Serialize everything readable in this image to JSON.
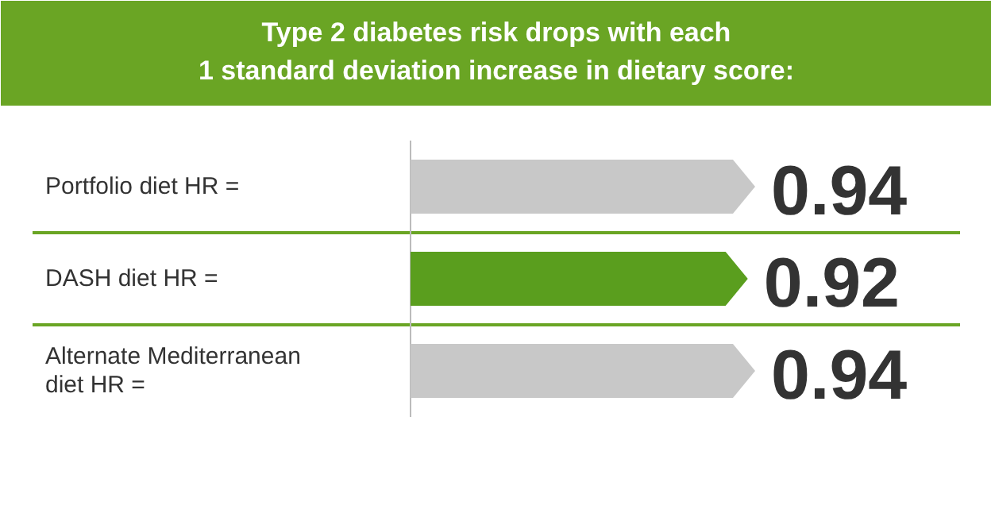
{
  "chart_data": {
    "type": "bar",
    "orientation": "horizontal",
    "title": "Type 2 diabetes risk drops with each\n1 standard deviation increase in dietary score:",
    "categories": [
      "Portfolio diet HR =",
      "DASH diet HR =",
      "Alternate Mediterranean diet HR ="
    ],
    "values": [
      0.94,
      0.92,
      0.94
    ],
    "colors": [
      "#c8c8c8",
      "#5a9e1e",
      "#c8c8c8"
    ],
    "data_labels": true
  }
}
